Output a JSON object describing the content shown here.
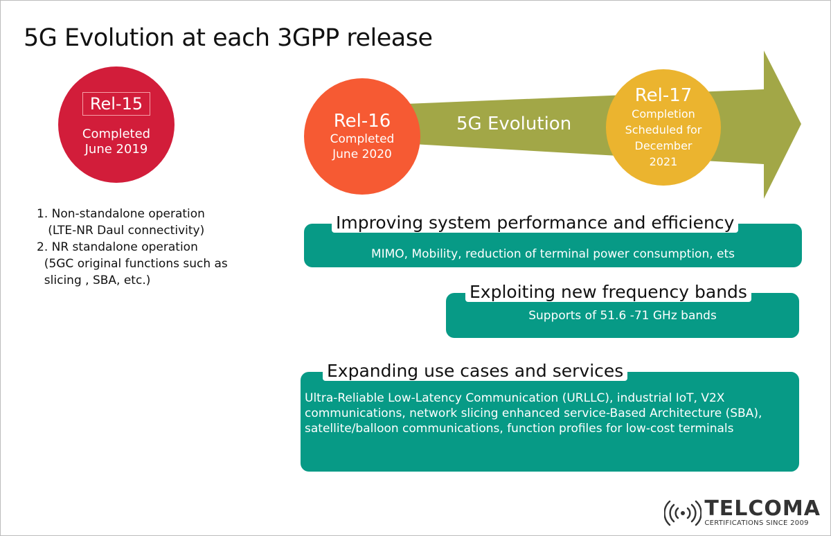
{
  "title": "5G Evolution at each 3GPP release",
  "colors": {
    "rel15": "#d21d3a",
    "rel16": "#f65a33",
    "rel17": "#ebb42f",
    "arrow": "#a2a747",
    "box": "#079a86"
  },
  "releases": [
    {
      "label": "Rel-15",
      "status": [
        "Completed",
        "June 2019"
      ]
    },
    {
      "label": "Rel-16",
      "status": [
        "Completed",
        "June 2020"
      ]
    },
    {
      "label": "Rel-17",
      "status": [
        "Completion",
        "Scheduled for",
        "December",
        "2021"
      ]
    }
  ],
  "arrow_label": "5G Evolution",
  "rel15_notes": [
    "1. Non-standalone operation",
    "   (LTE-NR Daul connectivity)",
    "2. NR standalone operation",
    "  (5GC original functions such as",
    "  slicing , SBA, etc.)"
  ],
  "boxes": [
    {
      "title": "Improving system performance and efficiency",
      "text": "MIMO, Mobility, reduction of terminal power consumption, ets"
    },
    {
      "title": "Exploiting new frequency bands",
      "text": "Supports of 51.6 -71 GHz bands"
    },
    {
      "title": "Expanding use cases and services",
      "text": "Ultra-Reliable Low-Latency  Communication (URLLC), industrial IoT, V2X communications, network slicing enhanced service-Based Architecture (SBA), satellite/balloon communications, function profiles for low-cost terminals"
    }
  ],
  "logo": {
    "name": "TELCOMA",
    "tagline": "CERTIFICATIONS SINCE 2009",
    "icon": "wireless-signal-icon"
  }
}
